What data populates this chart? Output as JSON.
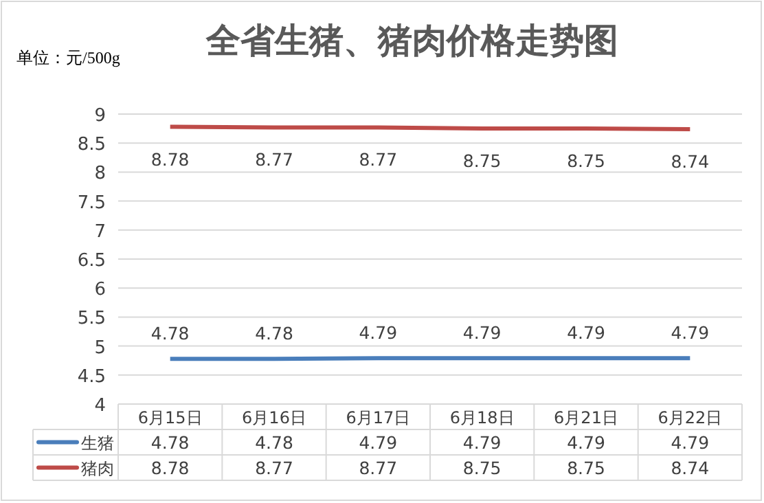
{
  "chart_data": {
    "type": "line",
    "title": "全省生猪、猪肉价格走势图",
    "ylabel": "单位：元/500g",
    "categories": [
      "6月15日",
      "6月16日",
      "6月17日",
      "6月18日",
      "6月21日",
      "6月22日"
    ],
    "series": [
      {
        "name": "生猪",
        "color": "#4a7ebb",
        "values": [
          4.78,
          4.78,
          4.79,
          4.79,
          4.79,
          4.79
        ],
        "value_labels": [
          "4.78",
          "4.78",
          "4.79",
          "4.79",
          "4.79",
          "4.79"
        ]
      },
      {
        "name": "猪肉",
        "color": "#be4b48",
        "values": [
          8.78,
          8.77,
          8.77,
          8.75,
          8.75,
          8.74
        ],
        "value_labels": [
          "8.78",
          "8.77",
          "8.77",
          "8.75",
          "8.75",
          "8.74"
        ]
      }
    ],
    "ylim": [
      4,
      9
    ],
    "yticks": [
      4,
      4.5,
      5,
      5.5,
      6,
      6.5,
      7,
      7.5,
      8,
      8.5,
      9
    ],
    "annotations": [
      "4.78",
      "4.78",
      "4.79",
      "4.79",
      "4.79",
      "4.79",
      "8.78",
      "8.77",
      "8.77",
      "8.75",
      "8.75",
      "8.74"
    ],
    "grid": "y",
    "legend": "bottom",
    "data_labels": true,
    "marker": "none",
    "line_style": "solid"
  }
}
